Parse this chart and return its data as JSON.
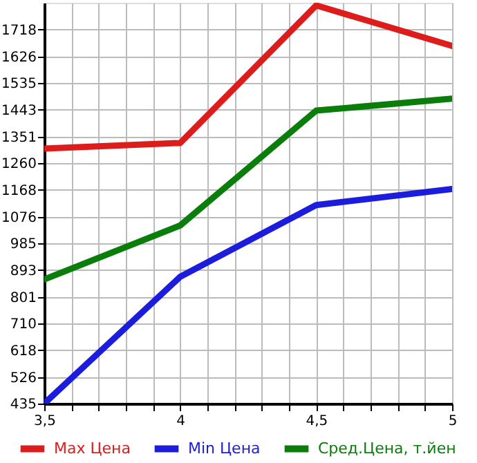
{
  "chart_data": {
    "type": "line",
    "x": [
      3.5,
      4,
      4.5,
      5
    ],
    "series": [
      {
        "name": "Max Цена",
        "color": "#dd1c1c",
        "values": [
          1310,
          1329,
          1801,
          1662
        ]
      },
      {
        "name": "Min Цена",
        "color": "#1c1cdd",
        "values": [
          435,
          870,
          1116,
          1171
        ]
      },
      {
        "name": "Сред.Цена, т.йен",
        "color": "#0a7d0a",
        "values": [
          861,
          1046,
          1440,
          1481
        ]
      }
    ],
    "xlim": [
      3.5,
      5
    ],
    "xticks": [
      {
        "value": 3.5,
        "label": "3,5"
      },
      {
        "value": 3.6,
        "label": null
      },
      {
        "value": 3.7,
        "label": null
      },
      {
        "value": 3.8,
        "label": null
      },
      {
        "value": 3.9,
        "label": null
      },
      {
        "value": 4,
        "label": "4"
      },
      {
        "value": 4.1,
        "label": null
      },
      {
        "value": 4.2,
        "label": null
      },
      {
        "value": 4.3,
        "label": null
      },
      {
        "value": 4.4,
        "label": null
      },
      {
        "value": 4.5,
        "label": "4,5"
      },
      {
        "value": 4.6,
        "label": null
      },
      {
        "value": 4.7,
        "label": null
      },
      {
        "value": 4.8,
        "label": null
      },
      {
        "value": 4.9,
        "label": null
      },
      {
        "value": 5,
        "label": "5"
      }
    ],
    "ylim": [
      435,
      1810
    ],
    "yticks": [
      435,
      526,
      618,
      710,
      801,
      893,
      985,
      1076,
      1168,
      1260,
      1351,
      1443,
      1535,
      1626,
      1718
    ],
    "grid": true,
    "legend": "bottom",
    "marker": "none",
    "line_style": "solid"
  }
}
